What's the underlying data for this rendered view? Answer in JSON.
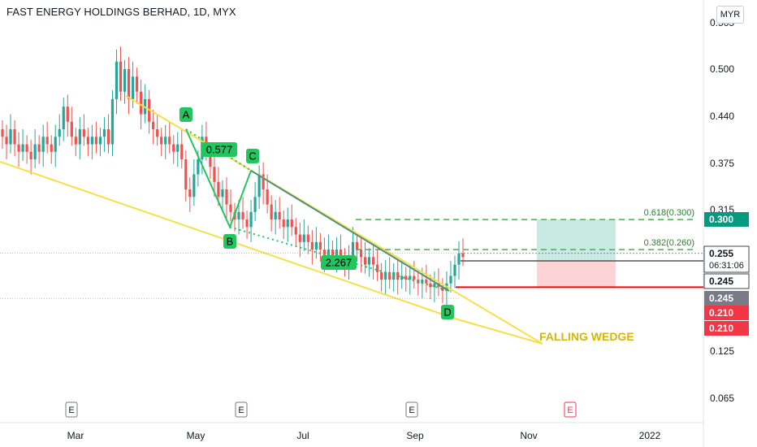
{
  "header": {
    "title": "FAST ENERGY HOLDINGS BERHAD, 1D, MYX",
    "currency": "MYR"
  },
  "colors": {
    "up": "#26a69a",
    "down": "#ef5350",
    "wedge": "#f5e04a",
    "pattern": "#22c55e",
    "fib": "#4caf50",
    "stop": "#ff0000"
  },
  "chart_data": {
    "type": "candlestick",
    "x_tick_labels": [
      "Mar",
      "May",
      "Jul",
      "Sep",
      "Nov",
      "2022"
    ],
    "y_tick_labels": [
      "0.565",
      "0.500",
      "0.440",
      "0.375",
      "0.315",
      "0.125",
      "0.065"
    ],
    "ylim": [
      0.04,
      0.58
    ],
    "candles_open_close": [
      [
        0.42,
        0.41
      ],
      [
        0.41,
        0.4
      ],
      [
        0.4,
        0.42
      ],
      [
        0.42,
        0.4
      ],
      [
        0.4,
        0.39
      ],
      [
        0.39,
        0.4
      ],
      [
        0.4,
        0.39
      ],
      [
        0.39,
        0.38
      ],
      [
        0.38,
        0.4
      ],
      [
        0.4,
        0.39
      ],
      [
        0.39,
        0.41
      ],
      [
        0.41,
        0.4
      ],
      [
        0.4,
        0.39
      ],
      [
        0.39,
        0.41
      ],
      [
        0.41,
        0.42
      ],
      [
        0.42,
        0.45
      ],
      [
        0.45,
        0.43
      ],
      [
        0.43,
        0.41
      ],
      [
        0.41,
        0.4
      ],
      [
        0.4,
        0.42
      ],
      [
        0.42,
        0.41
      ],
      [
        0.41,
        0.4
      ],
      [
        0.4,
        0.41
      ],
      [
        0.41,
        0.4
      ],
      [
        0.4,
        0.41
      ],
      [
        0.41,
        0.42
      ],
      [
        0.42,
        0.4
      ],
      [
        0.4,
        0.46
      ],
      [
        0.46,
        0.51
      ],
      [
        0.51,
        0.47
      ],
      [
        0.47,
        0.5
      ],
      [
        0.5,
        0.46
      ],
      [
        0.46,
        0.49
      ],
      [
        0.49,
        0.47
      ],
      [
        0.47,
        0.44
      ],
      [
        0.44,
        0.46
      ],
      [
        0.46,
        0.43
      ],
      [
        0.43,
        0.42
      ],
      [
        0.42,
        0.41
      ],
      [
        0.41,
        0.4
      ],
      [
        0.4,
        0.41
      ],
      [
        0.41,
        0.4
      ],
      [
        0.4,
        0.39
      ],
      [
        0.39,
        0.4
      ],
      [
        0.4,
        0.38
      ],
      [
        0.38,
        0.34
      ],
      [
        0.34,
        0.33
      ],
      [
        0.33,
        0.36
      ],
      [
        0.36,
        0.38
      ],
      [
        0.38,
        0.41
      ],
      [
        0.41,
        0.39
      ],
      [
        0.39,
        0.37
      ],
      [
        0.37,
        0.35
      ],
      [
        0.35,
        0.33
      ],
      [
        0.33,
        0.34
      ],
      [
        0.34,
        0.32
      ],
      [
        0.32,
        0.31
      ],
      [
        0.31,
        0.3
      ],
      [
        0.3,
        0.31
      ],
      [
        0.31,
        0.3
      ],
      [
        0.3,
        0.29
      ],
      [
        0.29,
        0.31
      ],
      [
        0.31,
        0.33
      ],
      [
        0.33,
        0.36
      ],
      [
        0.36,
        0.34
      ],
      [
        0.34,
        0.32
      ],
      [
        0.32,
        0.3
      ],
      [
        0.3,
        0.31
      ],
      [
        0.31,
        0.3
      ],
      [
        0.3,
        0.29
      ],
      [
        0.29,
        0.3
      ],
      [
        0.3,
        0.29
      ],
      [
        0.29,
        0.28
      ],
      [
        0.28,
        0.27
      ],
      [
        0.27,
        0.28
      ],
      [
        0.28,
        0.27
      ],
      [
        0.27,
        0.26
      ],
      [
        0.26,
        0.27
      ],
      [
        0.27,
        0.26
      ],
      [
        0.26,
        0.25
      ],
      [
        0.25,
        0.26
      ],
      [
        0.26,
        0.25
      ],
      [
        0.25,
        0.26
      ],
      [
        0.26,
        0.25
      ],
      [
        0.25,
        0.24
      ],
      [
        0.24,
        0.25
      ],
      [
        0.25,
        0.27
      ],
      [
        0.27,
        0.26
      ],
      [
        0.26,
        0.25
      ],
      [
        0.25,
        0.24
      ],
      [
        0.24,
        0.25
      ],
      [
        0.25,
        0.24
      ],
      [
        0.24,
        0.23
      ],
      [
        0.23,
        0.22
      ],
      [
        0.22,
        0.23
      ],
      [
        0.23,
        0.22
      ],
      [
        0.22,
        0.23
      ],
      [
        0.23,
        0.22
      ],
      [
        0.22,
        0.225
      ],
      [
        0.225,
        0.22
      ],
      [
        0.22,
        0.225
      ],
      [
        0.225,
        0.22
      ],
      [
        0.22,
        0.215
      ],
      [
        0.215,
        0.22
      ],
      [
        0.22,
        0.215
      ],
      [
        0.215,
        0.21
      ],
      [
        0.21,
        0.215
      ],
      [
        0.215,
        0.21
      ],
      [
        0.21,
        0.205
      ],
      [
        0.205,
        0.215
      ],
      [
        0.215,
        0.225
      ],
      [
        0.225,
        0.24
      ],
      [
        0.24,
        0.255
      ],
      [
        0.255,
        0.25
      ]
    ],
    "fib_levels": [
      {
        "label": "0.618(0.300)",
        "value": 0.3
      },
      {
        "label": "0.382(0.260)",
        "value": 0.26
      }
    ],
    "pattern_points": [
      {
        "label": "A",
        "value": 0.42
      },
      {
        "label": "B",
        "value": 0.29
      },
      {
        "label": "C",
        "value": 0.365
      },
      {
        "label": "D",
        "value": 0.205
      }
    ],
    "ratio_labels": [
      "0.577",
      "2.267"
    ],
    "annotation": "FALLING WEDGE",
    "earnings_markers": [
      "E",
      "E",
      "E",
      "E"
    ],
    "price_tags": [
      {
        "value": 0.3,
        "text": "0.300",
        "bg": "#089981",
        "fg": "#ffffff"
      },
      {
        "value": 0.255,
        "text": "0.255",
        "sub": "06:31:06",
        "bg": "#ffffff",
        "fg": "#131722"
      },
      {
        "value": 0.245,
        "text": "0.245",
        "bg": "#ffffff",
        "fg": "#131722"
      },
      {
        "value": 0.245,
        "text": "0.245",
        "bg": "#787b86",
        "fg": "#ffffff"
      },
      {
        "value": 0.21,
        "text": "0.210",
        "bg": "#f23645",
        "fg": "#ffffff"
      },
      {
        "value": 0.21,
        "text": "0.210",
        "bg": "#f23645",
        "fg": "#ffffff"
      }
    ]
  }
}
